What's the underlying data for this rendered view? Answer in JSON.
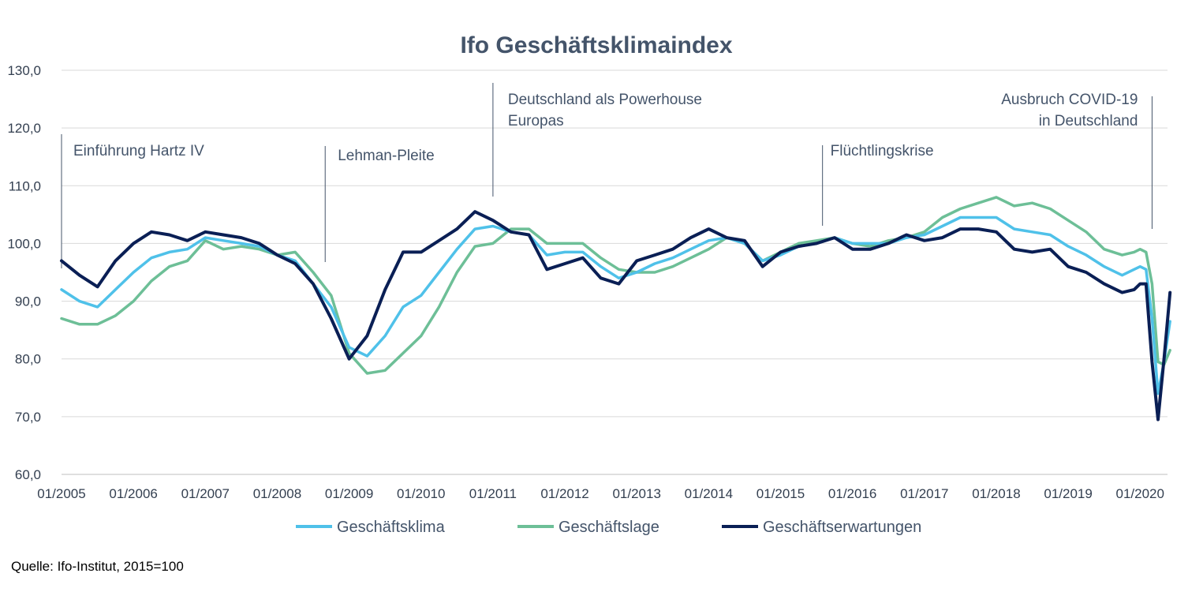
{
  "chart_data": {
    "type": "line",
    "title": "Ifo Geschäftsklimaindex",
    "source": "Quelle: Ifo-Institut, 2015=100",
    "ylim": [
      60,
      130
    ],
    "yticks": [
      "60,0",
      "70,0",
      "80,0",
      "90,0",
      "100,0",
      "110,0",
      "120,0",
      "130,0"
    ],
    "xticks": [
      "01/2005",
      "01/2006",
      "01/2007",
      "01/2008",
      "01/2009",
      "01/2010",
      "01/2011",
      "01/2012",
      "01/2013",
      "01/2014",
      "01/2015",
      "01/2016",
      "01/2017",
      "01/2018",
      "01/2019",
      "01/2020"
    ],
    "x_start": "01/2005",
    "x_end": "05/2020",
    "grid": true,
    "legend": "bottom",
    "colors": {
      "klima": "#4fc1e9",
      "lage": "#6dbf97",
      "erwartungen": "#0a1f55",
      "title": "#44546a",
      "grid": "#d9d9d9"
    },
    "annotations": [
      {
        "id": "hartz",
        "date": "01/2005",
        "lines": [
          "Einführung Hartz IV"
        ]
      },
      {
        "id": "lehman",
        "date": "09/2008",
        "lines": [
          "Lehman-Pleite"
        ]
      },
      {
        "id": "powerhouse",
        "date": "01/2011",
        "lines": [
          "Deutschland als Powerhouse",
          "Europas"
        ]
      },
      {
        "id": "fluechtling",
        "date": "08/2015",
        "lines": [
          "Flüchtlingskrise"
        ]
      },
      {
        "id": "covid",
        "date": "03/2020",
        "lines": [
          "Ausbruch COVID-19",
          "in Deutschland"
        ]
      }
    ],
    "series": [
      {
        "name": "Geschäftsklima",
        "points": [
          [
            "01/2005",
            92
          ],
          [
            "04/2005",
            90
          ],
          [
            "07/2005",
            89
          ],
          [
            "10/2005",
            92
          ],
          [
            "01/2006",
            95
          ],
          [
            "04/2006",
            97.5
          ],
          [
            "07/2006",
            98.5
          ],
          [
            "10/2006",
            99
          ],
          [
            "01/2007",
            101
          ],
          [
            "04/2007",
            100.5
          ],
          [
            "07/2007",
            100
          ],
          [
            "10/2007",
            99.5
          ],
          [
            "01/2008",
            98
          ],
          [
            "04/2008",
            97
          ],
          [
            "07/2008",
            93
          ],
          [
            "10/2008",
            89
          ],
          [
            "01/2009",
            82
          ],
          [
            "04/2009",
            80.5
          ],
          [
            "07/2009",
            84
          ],
          [
            "10/2009",
            89
          ],
          [
            "01/2010",
            91
          ],
          [
            "04/2010",
            95
          ],
          [
            "07/2010",
            99
          ],
          [
            "10/2010",
            102.5
          ],
          [
            "01/2011",
            103
          ],
          [
            "04/2011",
            102
          ],
          [
            "07/2011",
            101.5
          ],
          [
            "10/2011",
            98
          ],
          [
            "01/2012",
            98.5
          ],
          [
            "04/2012",
            98.5
          ],
          [
            "07/2012",
            96
          ],
          [
            "10/2012",
            94
          ],
          [
            "01/2013",
            95
          ],
          [
            "04/2013",
            96.5
          ],
          [
            "07/2013",
            97.5
          ],
          [
            "10/2013",
            99
          ],
          [
            "01/2014",
            100.5
          ],
          [
            "04/2014",
            101
          ],
          [
            "07/2014",
            100
          ],
          [
            "10/2014",
            97
          ],
          [
            "01/2015",
            98
          ],
          [
            "04/2015",
            99.5
          ],
          [
            "07/2015",
            100
          ],
          [
            "10/2015",
            101
          ],
          [
            "01/2016",
            100
          ],
          [
            "04/2016",
            100
          ],
          [
            "07/2016",
            100
          ],
          [
            "10/2016",
            101
          ],
          [
            "01/2017",
            101.5
          ],
          [
            "04/2017",
            103
          ],
          [
            "07/2017",
            104.5
          ],
          [
            "10/2017",
            104.5
          ],
          [
            "01/2018",
            104.5
          ],
          [
            "04/2018",
            102.5
          ],
          [
            "07/2018",
            102
          ],
          [
            "10/2018",
            101.5
          ],
          [
            "01/2019",
            99.5
          ],
          [
            "04/2019",
            98
          ],
          [
            "07/2019",
            96
          ],
          [
            "10/2019",
            94.5
          ],
          [
            "12/2019",
            95.5
          ],
          [
            "01/2020",
            96
          ],
          [
            "02/2020",
            95.5
          ],
          [
            "03/2020",
            87
          ],
          [
            "04/2020",
            74
          ],
          [
            "05/2020",
            79.5
          ],
          [
            "06/2020",
            86.5
          ]
        ]
      },
      {
        "name": "Geschäftslage",
        "points": [
          [
            "01/2005",
            87
          ],
          [
            "04/2005",
            86
          ],
          [
            "07/2005",
            86
          ],
          [
            "10/2005",
            87.5
          ],
          [
            "01/2006",
            90
          ],
          [
            "04/2006",
            93.5
          ],
          [
            "07/2006",
            96
          ],
          [
            "10/2006",
            97
          ],
          [
            "01/2007",
            100.5
          ],
          [
            "04/2007",
            99
          ],
          [
            "07/2007",
            99.5
          ],
          [
            "10/2007",
            99
          ],
          [
            "01/2008",
            98
          ],
          [
            "04/2008",
            98.5
          ],
          [
            "07/2008",
            95
          ],
          [
            "10/2008",
            91
          ],
          [
            "01/2009",
            81
          ],
          [
            "04/2009",
            77.5
          ],
          [
            "07/2009",
            78
          ],
          [
            "10/2009",
            81
          ],
          [
            "01/2010",
            84
          ],
          [
            "04/2010",
            89
          ],
          [
            "07/2010",
            95
          ],
          [
            "10/2010",
            99.5
          ],
          [
            "01/2011",
            100
          ],
          [
            "04/2011",
            102.5
          ],
          [
            "07/2011",
            102.5
          ],
          [
            "10/2011",
            100
          ],
          [
            "01/2012",
            100
          ],
          [
            "04/2012",
            100
          ],
          [
            "07/2012",
            97.5
          ],
          [
            "10/2012",
            95.5
          ],
          [
            "01/2013",
            95
          ],
          [
            "04/2013",
            95
          ],
          [
            "07/2013",
            96
          ],
          [
            "10/2013",
            97.5
          ],
          [
            "01/2014",
            99
          ],
          [
            "04/2014",
            101
          ],
          [
            "07/2014",
            100
          ],
          [
            "10/2014",
            97
          ],
          [
            "01/2015",
            98.5
          ],
          [
            "04/2015",
            100
          ],
          [
            "07/2015",
            100.5
          ],
          [
            "10/2015",
            101
          ],
          [
            "01/2016",
            100
          ],
          [
            "04/2016",
            99.5
          ],
          [
            "07/2016",
            100.5
          ],
          [
            "10/2016",
            101
          ],
          [
            "01/2017",
            102
          ],
          [
            "04/2017",
            104.5
          ],
          [
            "07/2017",
            106
          ],
          [
            "10/2017",
            107
          ],
          [
            "01/2018",
            108
          ],
          [
            "04/2018",
            106.5
          ],
          [
            "07/2018",
            107
          ],
          [
            "10/2018",
            106
          ],
          [
            "01/2019",
            104
          ],
          [
            "04/2019",
            102
          ],
          [
            "07/2019",
            99
          ],
          [
            "10/2019",
            98
          ],
          [
            "12/2019",
            98.5
          ],
          [
            "01/2020",
            99
          ],
          [
            "02/2020",
            98.5
          ],
          [
            "03/2020",
            93
          ],
          [
            "04/2020",
            79.5
          ],
          [
            "05/2020",
            79
          ],
          [
            "06/2020",
            81.5
          ]
        ]
      },
      {
        "name": "Geschäftserwartungen",
        "points": [
          [
            "01/2005",
            97
          ],
          [
            "04/2005",
            94.5
          ],
          [
            "07/2005",
            92.5
          ],
          [
            "10/2005",
            97
          ],
          [
            "01/2006",
            100
          ],
          [
            "04/2006",
            102
          ],
          [
            "07/2006",
            101.5
          ],
          [
            "10/2006",
            100.5
          ],
          [
            "01/2007",
            102
          ],
          [
            "04/2007",
            101.5
          ],
          [
            "07/2007",
            101
          ],
          [
            "10/2007",
            100
          ],
          [
            "01/2008",
            98
          ],
          [
            "04/2008",
            96.5
          ],
          [
            "07/2008",
            93
          ],
          [
            "10/2008",
            87
          ],
          [
            "01/2009",
            80
          ],
          [
            "04/2009",
            84
          ],
          [
            "07/2009",
            92
          ],
          [
            "10/2009",
            98.5
          ],
          [
            "01/2010",
            98.5
          ],
          [
            "04/2010",
            100.5
          ],
          [
            "07/2010",
            102.5
          ],
          [
            "10/2010",
            105.5
          ],
          [
            "01/2011",
            104
          ],
          [
            "04/2011",
            102
          ],
          [
            "07/2011",
            101.5
          ],
          [
            "10/2011",
            95.5
          ],
          [
            "01/2012",
            96.5
          ],
          [
            "04/2012",
            97.5
          ],
          [
            "07/2012",
            94
          ],
          [
            "10/2012",
            93
          ],
          [
            "01/2013",
            97
          ],
          [
            "04/2013",
            98
          ],
          [
            "07/2013",
            99
          ],
          [
            "10/2013",
            101
          ],
          [
            "01/2014",
            102.5
          ],
          [
            "04/2014",
            101
          ],
          [
            "07/2014",
            100.5
          ],
          [
            "10/2014",
            96
          ],
          [
            "01/2015",
            98.5
          ],
          [
            "04/2015",
            99.5
          ],
          [
            "07/2015",
            100
          ],
          [
            "10/2015",
            101
          ],
          [
            "01/2016",
            99
          ],
          [
            "04/2016",
            99
          ],
          [
            "07/2016",
            100
          ],
          [
            "10/2016",
            101.5
          ],
          [
            "01/2017",
            100.5
          ],
          [
            "04/2017",
            101
          ],
          [
            "07/2017",
            102.5
          ],
          [
            "10/2017",
            102.5
          ],
          [
            "01/2018",
            102
          ],
          [
            "04/2018",
            99
          ],
          [
            "07/2018",
            98.5
          ],
          [
            "10/2018",
            99
          ],
          [
            "01/2019",
            96
          ],
          [
            "04/2019",
            95
          ],
          [
            "07/2019",
            93
          ],
          [
            "10/2019",
            91.5
          ],
          [
            "12/2019",
            92
          ],
          [
            "01/2020",
            93
          ],
          [
            "02/2020",
            93
          ],
          [
            "03/2020",
            79.5
          ],
          [
            "04/2020",
            69.5
          ],
          [
            "05/2020",
            80
          ],
          [
            "06/2020",
            91.5
          ]
        ]
      }
    ]
  }
}
